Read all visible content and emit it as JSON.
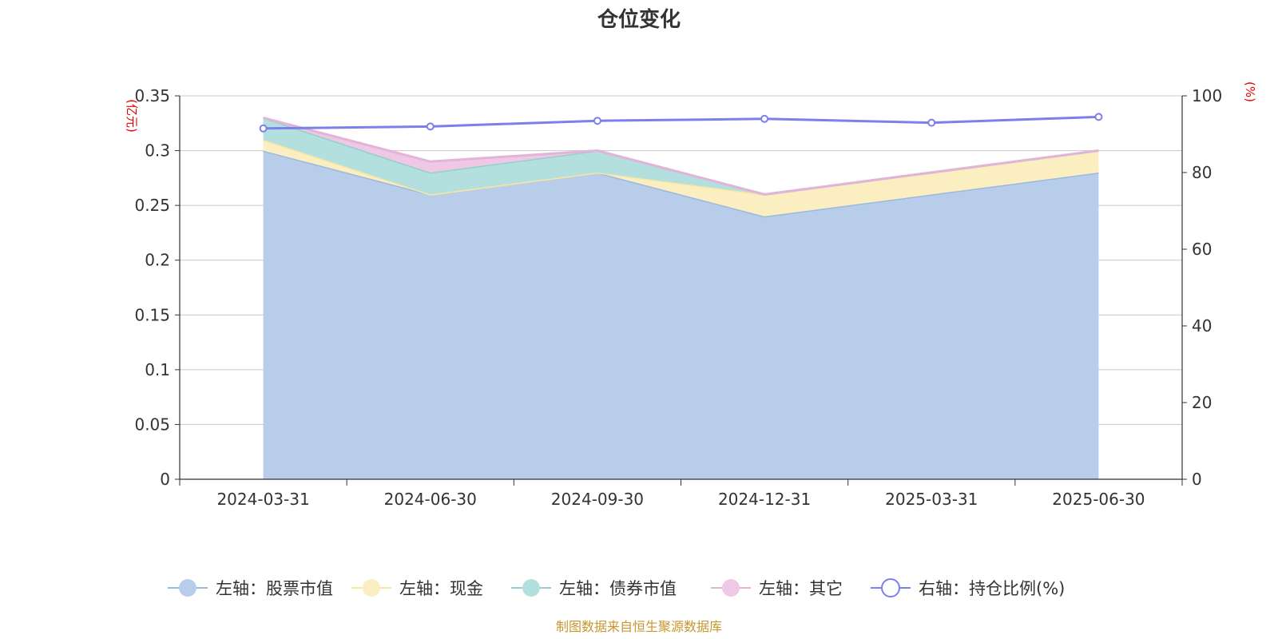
{
  "chart_data": {
    "type": "area",
    "title": "仓位变化",
    "categories": [
      "2024-03-31",
      "2024-06-30",
      "2024-09-30",
      "2024-12-31",
      "2025-03-31",
      "2025-06-30"
    ],
    "left_axis": {
      "unit": "(亿元)",
      "min": 0,
      "max": 0.35,
      "ticks": [
        "0",
        "0.05",
        "0.1",
        "0.15",
        "0.2",
        "0.25",
        "0.3",
        "0.35"
      ]
    },
    "right_axis": {
      "unit": "(%)",
      "min": 0,
      "max": 100,
      "ticks": [
        "0",
        "20",
        "40",
        "60",
        "80",
        "100"
      ]
    },
    "stacked_series": [
      {
        "name": "左轴：股票市值",
        "values": [
          0.3,
          0.26,
          0.28,
          0.24,
          0.26,
          0.28
        ],
        "color": "#9bb8e0",
        "fill": "#b8cdea"
      },
      {
        "name": "左轴：现金",
        "values": [
          0.01,
          0.0,
          0.0,
          0.02,
          0.02,
          0.02
        ],
        "color": "#f8e6a0",
        "fill": "#fbefc1"
      },
      {
        "name": "左轴：债券市值",
        "values": [
          0.02,
          0.02,
          0.02,
          0.0,
          0.0,
          0.0
        ],
        "color": "#8fd1cf",
        "fill": "#b3e0df"
      },
      {
        "name": "左轴：其它",
        "values": [
          0.0,
          0.01,
          0.0,
          0.0,
          0.0,
          0.0
        ],
        "color": "#e3b4d8",
        "fill": "#efc8e5"
      }
    ],
    "line_series": {
      "name": "右轴：持仓比例(%)",
      "values": [
        91.5,
        92.0,
        93.5,
        94.0,
        93.0,
        94.5
      ],
      "color": "#7b80ea"
    },
    "grid": true,
    "legend_position": "bottom"
  },
  "source_note": "制图数据来自恒生聚源数据库"
}
